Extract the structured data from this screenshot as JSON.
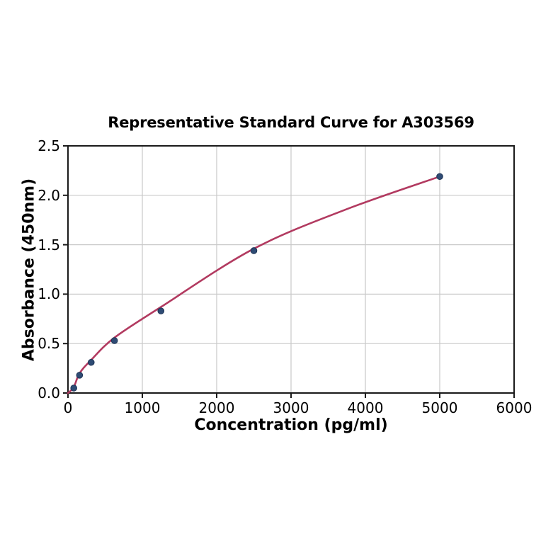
{
  "page": {
    "background": "#ffffff"
  },
  "chart_data": {
    "type": "scatter",
    "title": "Representative Standard Curve for A303569",
    "xlabel": "Concentration (pg/ml)",
    "ylabel": "Absorbance (450nm)",
    "xlim": [
      0,
      6000
    ],
    "ylim": [
      0,
      2.5
    ],
    "xticks": [
      0,
      1000,
      2000,
      3000,
      4000,
      5000,
      6000
    ],
    "yticks": [
      0.0,
      0.5,
      1.0,
      1.5,
      2.0,
      2.5
    ],
    "grid": true,
    "legend_position": "none",
    "series": [
      {
        "name": "standard-points",
        "style": "markers",
        "x": [
          78,
          156,
          312,
          625,
          1250,
          2500,
          5000
        ],
        "y": [
          0.05,
          0.18,
          0.31,
          0.53,
          0.83,
          1.44,
          2.19
        ]
      },
      {
        "name": "fitted-curve",
        "style": "smooth-line",
        "x": [
          0,
          78,
          156,
          312,
          625,
          1250,
          2500,
          3750,
          5000
        ],
        "y": [
          0.0,
          0.06,
          0.2,
          0.335,
          0.56,
          0.87,
          1.46,
          1.86,
          2.19
        ]
      }
    ],
    "colors": {
      "curve": "#b23a60",
      "marker": "#2e4b74",
      "marker_edge": "#1d3354",
      "grid": "#c9c9c9",
      "spine": "#1a1a1a",
      "text": "#000000"
    }
  }
}
